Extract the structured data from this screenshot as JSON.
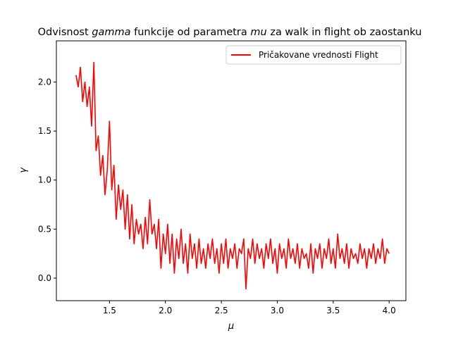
{
  "chart_data": {
    "type": "line",
    "title_prefix": "Odvisnost ",
    "title_gamma": "gamma",
    "title_mid": " funkcije od parametra ",
    "title_mu": "mu",
    "title_suffix": " za walk in flight ob zaostanku",
    "xlabel": "μ",
    "ylabel": "γ",
    "xlim": [
      1.025,
      4.15
    ],
    "ylim": [
      -0.23,
      2.42
    ],
    "xticks": [
      1.5,
      2.0,
      2.5,
      3.0,
      3.5,
      4.0
    ],
    "xtick_labels": [
      "1.5",
      "2.0",
      "2.5",
      "3.0",
      "3.5",
      "4.0"
    ],
    "yticks": [
      0.0,
      0.5,
      1.0,
      1.5,
      2.0
    ],
    "ytick_labels": [
      "0.0",
      "0.5",
      "1.0",
      "1.5",
      "2.0"
    ],
    "grid": false,
    "legend_position": "top-right",
    "series": [
      {
        "name": "Pričakovane vrednosti Flight",
        "color": "#ff0000",
        "x": [
          1.2,
          1.22,
          1.24,
          1.26,
          1.28,
          1.3,
          1.32,
          1.34,
          1.36,
          1.38,
          1.4,
          1.42,
          1.44,
          1.46,
          1.48,
          1.5,
          1.52,
          1.54,
          1.56,
          1.58,
          1.6,
          1.62,
          1.64,
          1.66,
          1.68,
          1.7,
          1.72,
          1.74,
          1.76,
          1.78,
          1.8,
          1.82,
          1.84,
          1.86,
          1.88,
          1.9,
          1.92,
          1.94,
          1.96,
          1.98,
          2.0,
          2.02,
          2.04,
          2.06,
          2.08,
          2.1,
          2.12,
          2.14,
          2.16,
          2.18,
          2.2,
          2.22,
          2.24,
          2.26,
          2.28,
          2.3,
          2.32,
          2.34,
          2.36,
          2.38,
          2.4,
          2.42,
          2.44,
          2.46,
          2.48,
          2.5,
          2.52,
          2.54,
          2.56,
          2.58,
          2.6,
          2.62,
          2.64,
          2.66,
          2.68,
          2.7,
          2.72,
          2.74,
          2.76,
          2.78,
          2.8,
          2.82,
          2.84,
          2.86,
          2.88,
          2.9,
          2.92,
          2.94,
          2.96,
          2.98,
          3.0,
          3.02,
          3.04,
          3.06,
          3.08,
          3.1,
          3.12,
          3.14,
          3.16,
          3.18,
          3.2,
          3.22,
          3.24,
          3.26,
          3.28,
          3.3,
          3.32,
          3.34,
          3.36,
          3.38,
          3.4,
          3.42,
          3.44,
          3.46,
          3.48,
          3.5,
          3.52,
          3.54,
          3.56,
          3.58,
          3.6,
          3.62,
          3.64,
          3.66,
          3.68,
          3.7,
          3.72,
          3.74,
          3.76,
          3.78,
          3.8,
          3.82,
          3.84,
          3.86,
          3.88,
          3.9,
          3.92,
          3.94,
          3.96,
          3.98,
          4.0
        ],
        "y": [
          2.07,
          1.95,
          2.15,
          1.8,
          2.0,
          1.75,
          1.95,
          1.55,
          2.2,
          1.3,
          1.45,
          1.05,
          1.25,
          0.85,
          1.1,
          1.6,
          0.9,
          1.15,
          0.6,
          0.95,
          0.7,
          0.9,
          0.5,
          0.85,
          0.4,
          0.75,
          0.35,
          0.6,
          0.45,
          0.55,
          0.3,
          0.62,
          0.35,
          0.8,
          0.45,
          0.55,
          0.3,
          0.6,
          0.1,
          0.45,
          0.25,
          0.55,
          0.15,
          0.45,
          0.05,
          0.4,
          0.2,
          0.5,
          0.15,
          0.35,
          0.05,
          0.45,
          0.2,
          0.35,
          0.1,
          0.4,
          0.15,
          0.3,
          0.1,
          0.35,
          0.2,
          0.4,
          0.15,
          0.3,
          0.05,
          0.35,
          0.15,
          0.4,
          0.1,
          0.3,
          0.2,
          0.35,
          0.1,
          0.3,
          0.25,
          0.4,
          -0.11,
          0.3,
          0.2,
          0.4,
          0.15,
          0.35,
          0.2,
          0.3,
          0.1,
          0.35,
          0.2,
          0.4,
          0.15,
          0.3,
          0.05,
          0.35,
          0.2,
          0.3,
          0.1,
          0.4,
          0.2,
          0.3,
          0.15,
          0.35,
          0.1,
          0.3,
          0.2,
          0.25,
          0.1,
          0.35,
          0.05,
          0.3,
          0.2,
          0.35,
          0.1,
          0.3,
          0.2,
          0.4,
          0.15,
          0.3,
          0.1,
          0.45,
          0.2,
          0.3,
          0.15,
          0.35,
          0.1,
          0.3,
          0.2,
          0.25,
          0.15,
          0.35,
          0.2,
          0.3,
          0.1,
          0.3,
          0.2,
          0.35,
          0.15,
          0.3,
          0.2,
          0.4,
          0.15,
          0.3,
          0.25
        ]
      }
    ]
  }
}
